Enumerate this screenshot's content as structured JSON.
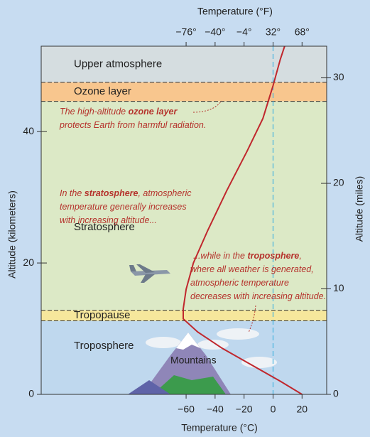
{
  "chart_data": {
    "type": "line",
    "x_title": "Temperature (°C)",
    "x2_title": "Temperature (°F)",
    "y_title": "Altitude (kilometers)",
    "y2_title": "Altitude (miles)",
    "xlim": [
      -160,
      37
    ],
    "xticks": [
      {
        "value": -60,
        "label": "−60"
      },
      {
        "value": -40,
        "label": "−40"
      },
      {
        "value": -20,
        "label": "−20"
      },
      0,
      20
    ],
    "x2lim": [
      -256,
      98.6
    ],
    "x2ticks": [
      {
        "value": -76,
        "label": "−76°"
      },
      {
        "value": -40,
        "label": "−40°"
      },
      {
        "value": -4,
        "label": "−4°"
      },
      {
        "value": 32,
        "label": "32°"
      },
      {
        "value": 68,
        "label": "68°"
      }
    ],
    "ylim": [
      0,
      53
    ],
    "yticks": [
      0,
      20,
      40
    ],
    "y2lim": [
      0,
      33
    ],
    "y2ticks": [
      0,
      10,
      20,
      30
    ],
    "freezing_line": {
      "value": 0,
      "color": "#45b3e0"
    },
    "regions": [
      {
        "label": "Upper atmosphere",
        "from": 47.5,
        "to": 53,
        "color": "#d5dde0"
      },
      {
        "label": "Ozone layer",
        "from": 44.6,
        "to": 47.5,
        "color": "#f8c68e"
      },
      {
        "label": "Stratosphere",
        "from": 12.8,
        "to": 44.6,
        "color": "#dce9c6"
      },
      {
        "label": "Tropopause",
        "from": 11.2,
        "to": 12.8,
        "color": "#f6e79c"
      },
      {
        "label": "Troposphere",
        "from": 0,
        "to": 11.2,
        "color": "#bfd8ee"
      }
    ],
    "series": [
      {
        "color": "#c0272d",
        "x": [
          20,
          5,
          -15,
          -35,
          -52,
          -62,
          -62,
          -60,
          -55,
          -45,
          -32,
          -18,
          -7,
          0,
          5,
          8
        ],
        "values": [
          0,
          2,
          4.5,
          7,
          9.5,
          11.5,
          13,
          16,
          20,
          25,
          31,
          37,
          42,
          47,
          51,
          53
        ]
      }
    ],
    "label_mountains": "Mountains",
    "annotations": [
      {
        "lines": [
          [
            "The high-altitude ",
            "ozone layer"
          ],
          [
            "protects Earth from harmful radiation."
          ]
        ]
      },
      {
        "lines": [
          [
            "In the ",
            "stratosphere",
            ", atmospheric"
          ],
          [
            "temperature generally increases"
          ],
          [
            "with increasing altitude..."
          ]
        ]
      },
      {
        "lines": [
          [
            "...while in the ",
            "troposphere",
            ","
          ],
          [
            "where all weather is generated,"
          ],
          [
            "atmospheric temperature"
          ],
          [
            "decreases with increasing altitude."
          ]
        ]
      }
    ]
  }
}
